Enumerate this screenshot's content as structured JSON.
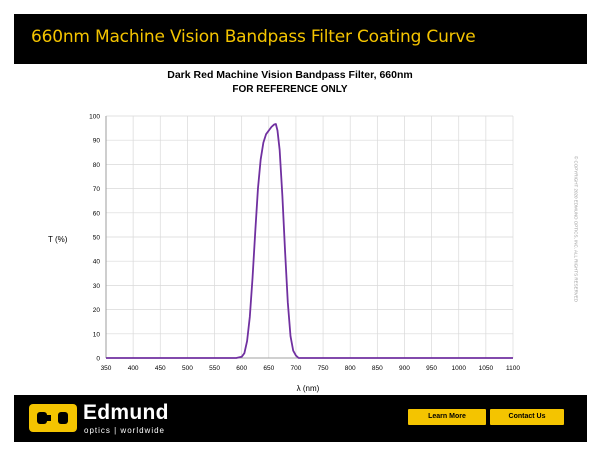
{
  "header": {
    "title": "660nm Machine Vision Bandpass Filter Coating Curve"
  },
  "chart_data": {
    "type": "line",
    "title": "Dark Red Machine Vision Bandpass Filter, 660nm",
    "subtitle": "FOR REFERENCE ONLY",
    "xlabel": "λ (nm)",
    "ylabel": "T (%)",
    "xlim": [
      350,
      1100
    ],
    "ylim": [
      0,
      100
    ],
    "xticks": [
      350,
      400,
      450,
      500,
      550,
      600,
      650,
      700,
      750,
      800,
      850,
      900,
      950,
      1000,
      1050,
      1100
    ],
    "yticks": [
      0,
      10,
      20,
      30,
      40,
      50,
      60,
      70,
      80,
      90,
      100
    ],
    "grid": true,
    "series_color": "#7030a0",
    "series": [
      {
        "x": [
          350,
          590,
          600,
          605,
          610,
          615,
          620,
          625,
          630,
          635,
          640,
          645,
          650,
          655,
          660,
          663,
          666,
          670,
          675,
          680,
          685,
          690,
          695,
          700,
          705,
          715,
          1100
        ],
        "values": [
          0,
          0,
          0.5,
          2,
          7,
          17,
          33,
          52,
          70,
          82,
          89,
          92.5,
          94,
          95.5,
          96.5,
          96.7,
          94,
          86,
          67,
          44,
          23,
          9,
          3,
          1,
          0,
          0,
          0
        ]
      }
    ]
  },
  "copyright": "© COPYRIGHT 2020 EDMUND OPTICS, INC. ALL RIGHTS RESERVED",
  "footer": {
    "brand": "Edmund",
    "tagline": "optics | worldwide",
    "learn_more": "Learn More",
    "contact_us": "Contact Us"
  },
  "colors": {
    "accent": "#f4c400",
    "bar": "#000000",
    "curve": "#7030a0",
    "grid": "#d9d9d9"
  },
  "icons": {
    "logo": "edmund-eo-logo"
  }
}
